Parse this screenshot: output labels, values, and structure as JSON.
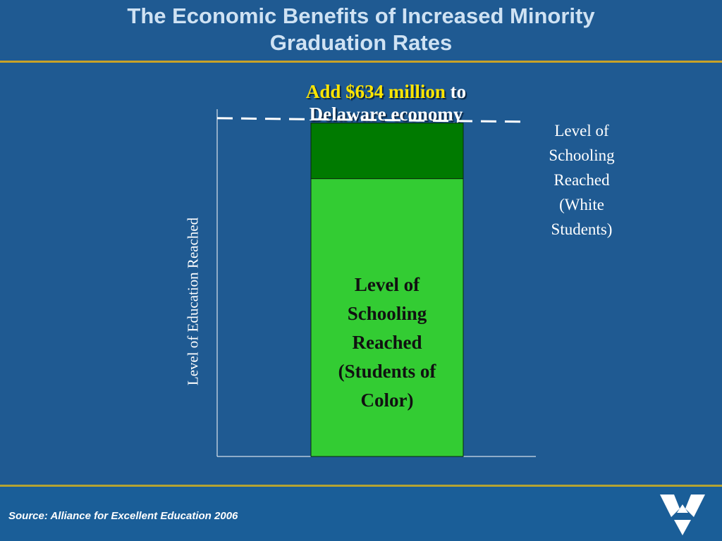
{
  "slide": {
    "title_line1": "The Economic Benefits of Increased Minority",
    "title_line2": "Graduation Rates",
    "subtitle_highlight": "Add $634 million",
    "subtitle_rest_1": " to",
    "subtitle_line2": "Delaware economy",
    "source": "Source: Alliance for Excellent Education 2006"
  },
  "colors": {
    "background": "#1f5a92",
    "accent_rule": "#c9a227",
    "bar_light": "#33cc33",
    "bar_dark": "#007a00",
    "highlight": "#ffe500"
  },
  "chart_data": {
    "type": "bar",
    "ylabel": "Level of Education Reached",
    "grid": false,
    "stacked": true,
    "series": [
      {
        "name": "Level of Schooling Reached (Students of Color)",
        "values": [
          0.8
        ],
        "color": "#33cc33"
      },
      {
        "name": "Gap to white students",
        "values": [
          0.16
        ],
        "color": "#007a00"
      }
    ],
    "reference_line": {
      "label": "Level of Schooling Reached (White Students)",
      "value": 0.97,
      "style": "dashed"
    },
    "ylim": [
      0,
      1
    ]
  },
  "labels": {
    "bar_lines": [
      "Level of",
      "Schooling",
      "Reached",
      "(Students of",
      "Color)"
    ],
    "side_lines": [
      "Level of",
      "Schooling",
      "Reached",
      "(White",
      "Students)"
    ]
  }
}
